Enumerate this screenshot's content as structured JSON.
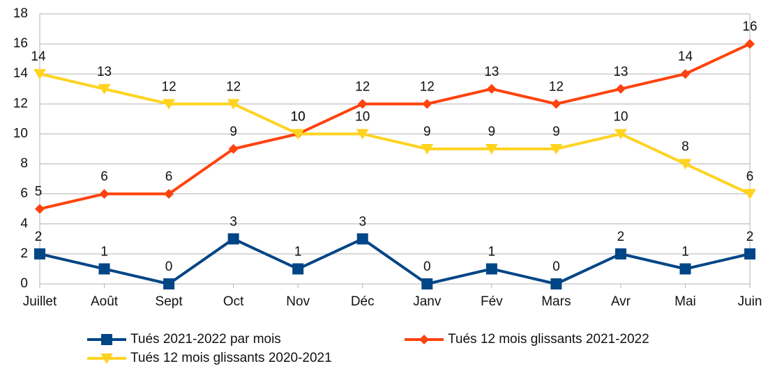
{
  "chart_data": {
    "type": "line",
    "categories": [
      "Juillet",
      "Août",
      "Sept",
      "Oct",
      "Nov",
      "Déc",
      "Janv",
      "Fév",
      "Mars",
      "Avr",
      "Mai",
      "Juin"
    ],
    "series": [
      {
        "name": "Tués 2021-2022 par mois",
        "color": "#004586",
        "marker": "square",
        "values": [
          2,
          1,
          0,
          3,
          1,
          3,
          0,
          1,
          0,
          2,
          1,
          2
        ]
      },
      {
        "name": "Tués 12 mois glissants 2021-2022",
        "color": "#ff420e",
        "marker": "diamond",
        "values": [
          5,
          6,
          6,
          9,
          10,
          12,
          12,
          13,
          12,
          13,
          14,
          16
        ]
      },
      {
        "name": "Tués 12 mois glissants 2020-2021",
        "color": "#ffd320",
        "marker": "triangle-down",
        "values": [
          14,
          13,
          12,
          12,
          10,
          10,
          9,
          9,
          9,
          10,
          8,
          6
        ]
      }
    ],
    "ylim": [
      0,
      18
    ],
    "yticks": [
      0,
      2,
      4,
      6,
      8,
      10,
      12,
      14,
      16,
      18
    ],
    "grid": true,
    "legend": "bottom"
  }
}
